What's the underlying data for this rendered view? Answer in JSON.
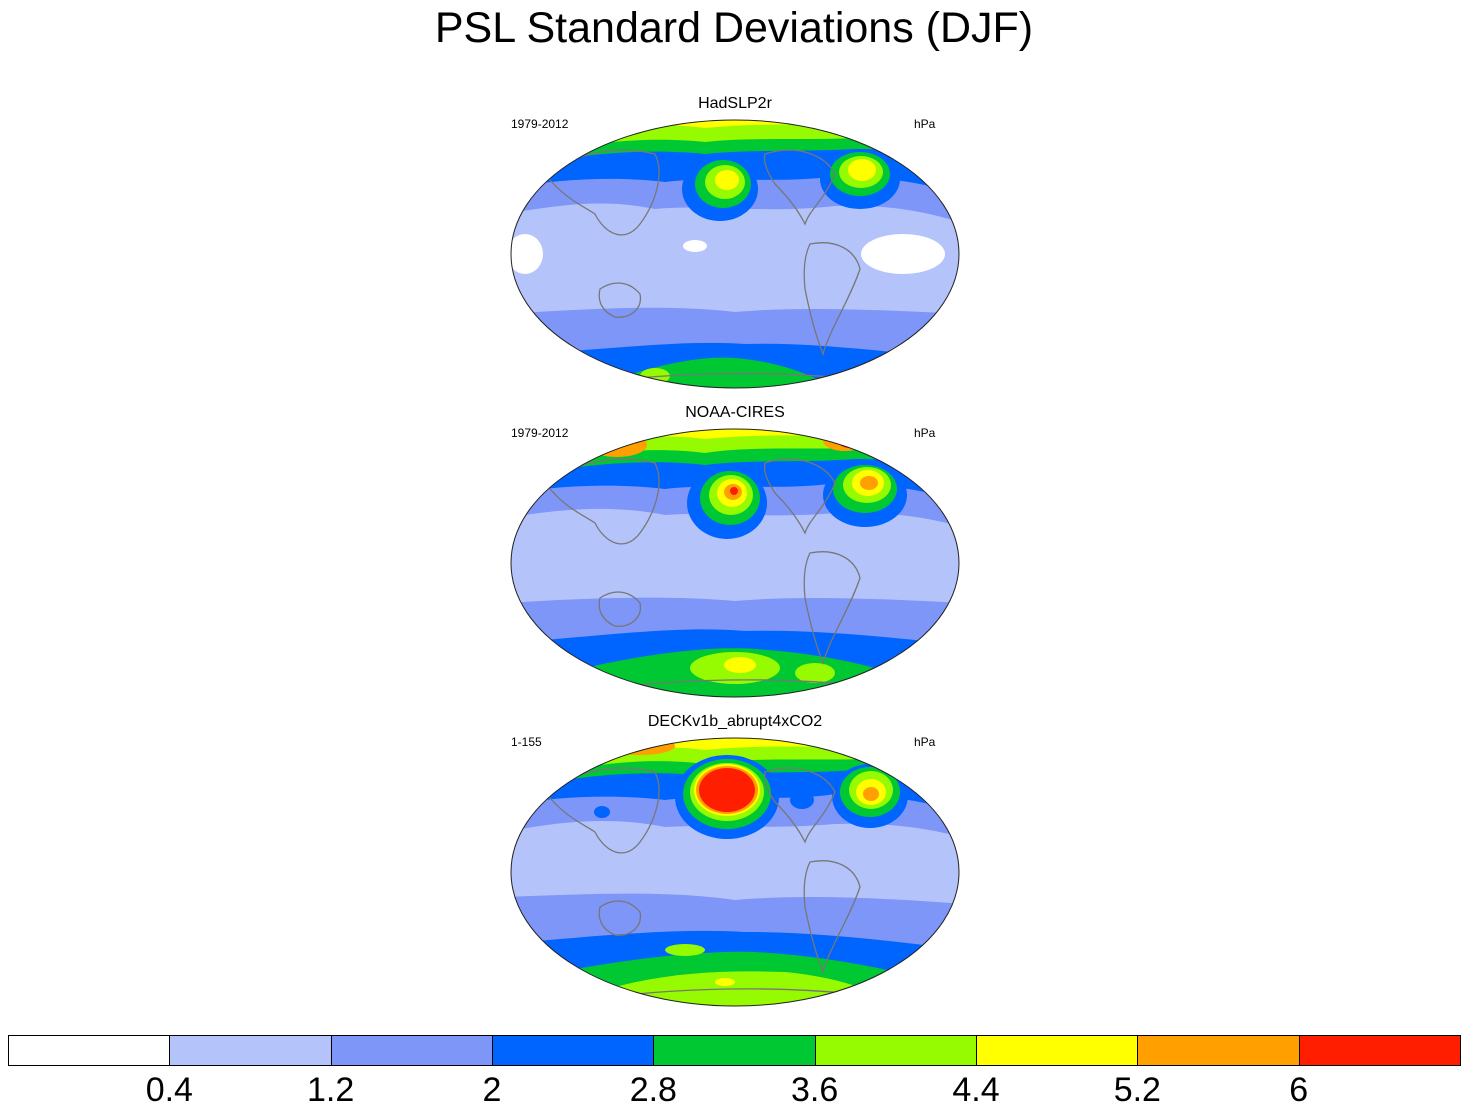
{
  "title": "PSL Standard Deviations (DJF)",
  "panels": [
    {
      "title": "HadSLP2r",
      "left_label": "1979-2012",
      "right_label": "hPa"
    },
    {
      "title": "NOAA-CIRES",
      "left_label": "1979-2012",
      "right_label": "hPa"
    },
    {
      "title": "DECKv1b_abrupt4xCO2",
      "left_label": "1-155",
      "right_label": "hPa"
    }
  ],
  "colorbar": {
    "colors": [
      "#ffffff",
      "#b4c4fa",
      "#7e96f8",
      "#0064ff",
      "#00c832",
      "#96fa00",
      "#ffff00",
      "#ffa000",
      "#ff1e00"
    ],
    "labels": [
      "0.4",
      "1.2",
      "2",
      "2.8",
      "3.6",
      "4.4",
      "5.2",
      "6"
    ]
  }
}
